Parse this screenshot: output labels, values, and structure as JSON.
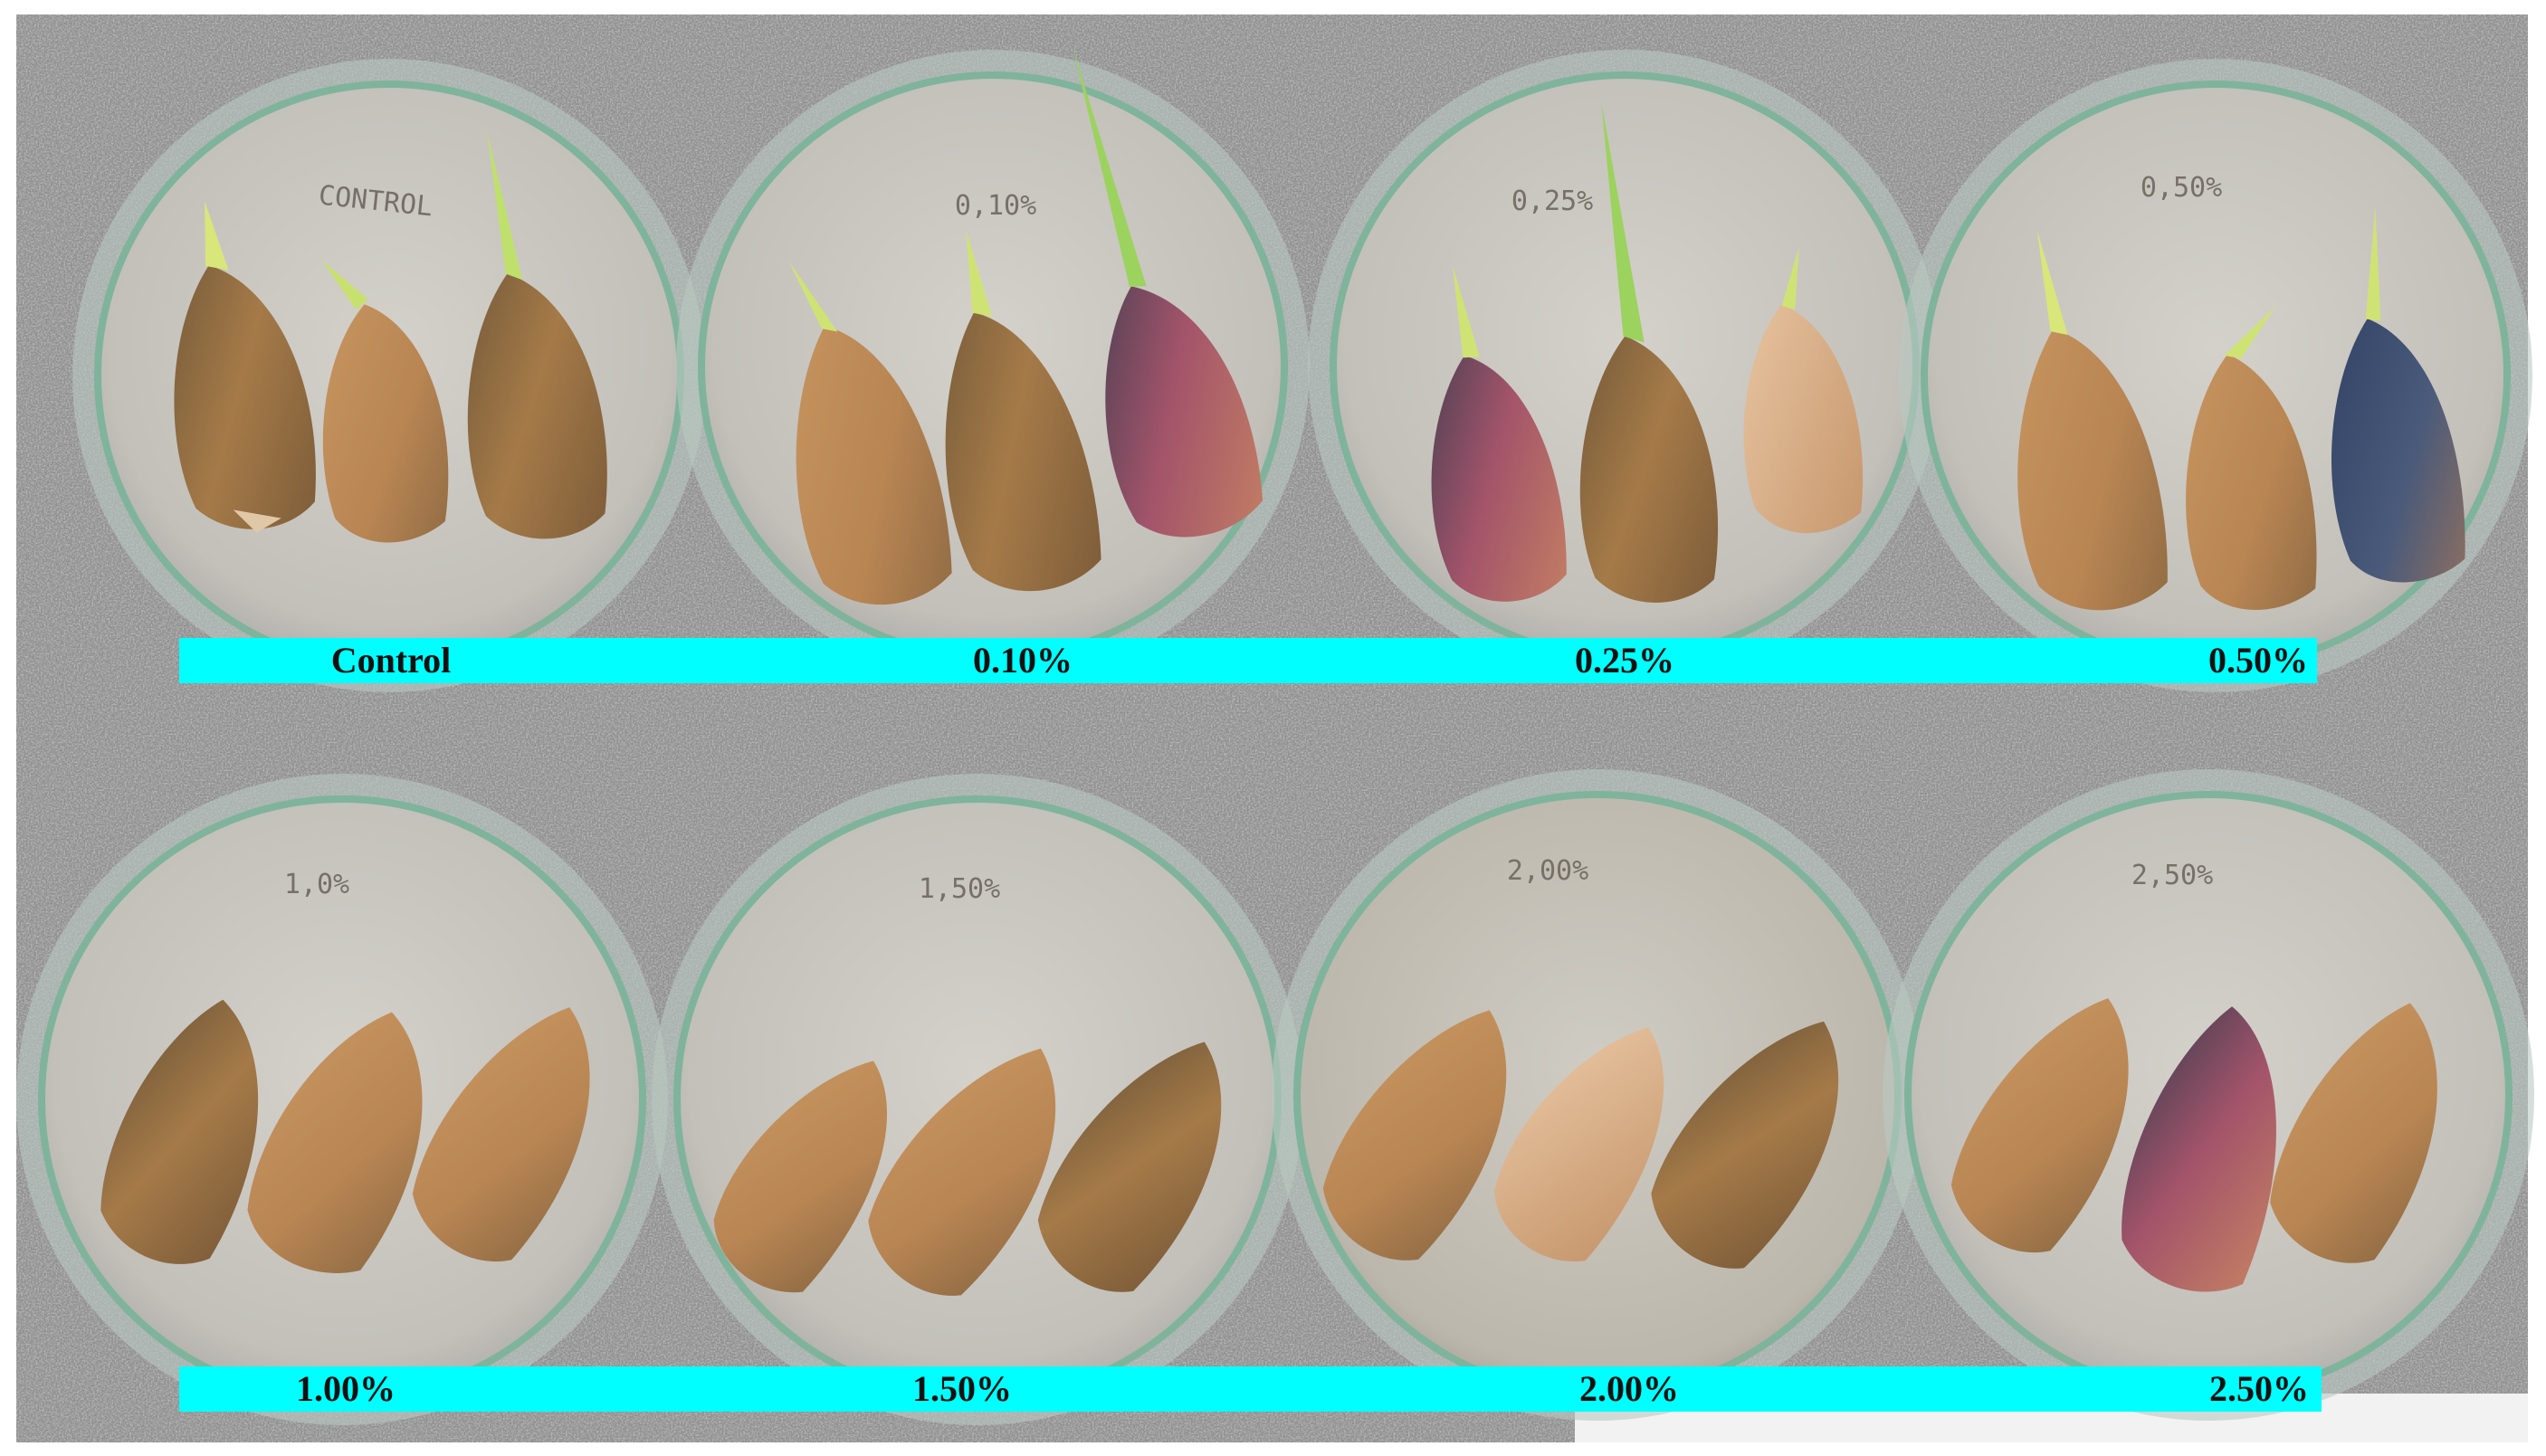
{
  "figure": {
    "top_row_labels": [
      "Control",
      "0.10%",
      "0.25%",
      "0.50%"
    ],
    "bottom_row_labels": [
      "1.00%",
      "1.50%",
      "2.00%",
      "2.50%"
    ],
    "dish_handwriting_top": [
      "CONTROL",
      "0,10%",
      "0,25%",
      "0,50%"
    ],
    "dish_handwriting_bottom": [
      "1,0%",
      "1,50%",
      "2,00%",
      "2,50%"
    ],
    "label_bar_color": "#00ffff",
    "background": "grey speckled granite countertop"
  }
}
